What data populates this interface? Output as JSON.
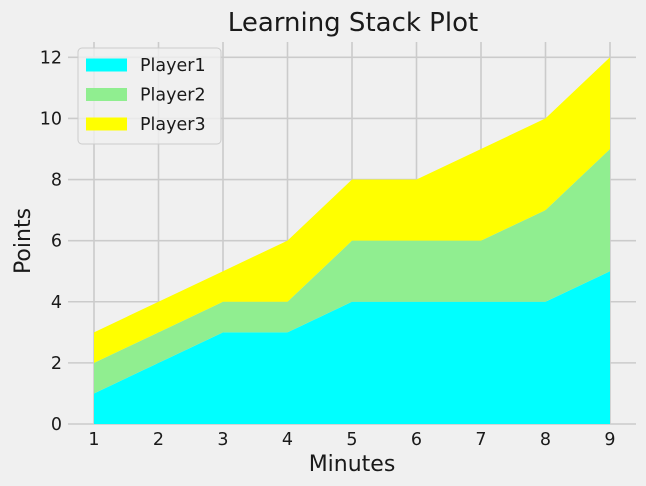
{
  "chart_data": {
    "type": "area",
    "stacked": true,
    "title": "Learning Stack Plot",
    "xlabel": "Minutes",
    "ylabel": "Points",
    "x": [
      1,
      2,
      3,
      4,
      5,
      6,
      7,
      8,
      9
    ],
    "xlim": [
      1,
      9
    ],
    "ylim": [
      0,
      12.5
    ],
    "xticks": [
      "1",
      "2",
      "3",
      "4",
      "5",
      "6",
      "7",
      "8",
      "9"
    ],
    "yticks": [
      "0",
      "2",
      "4",
      "6",
      "8",
      "10",
      "12"
    ],
    "grid": true,
    "legend_position": "top-left",
    "series": [
      {
        "name": "Player1",
        "color": "#00ffff",
        "values": [
          1,
          2,
          3,
          3,
          4,
          4,
          4,
          4,
          5
        ]
      },
      {
        "name": "Player2",
        "color": "#90ee90",
        "values": [
          1,
          1,
          1,
          1,
          2,
          2,
          2,
          3,
          4
        ]
      },
      {
        "name": "Player3",
        "color": "#ffff00",
        "values": [
          1,
          1,
          1,
          2,
          2,
          2,
          3,
          3,
          3
        ]
      }
    ]
  }
}
